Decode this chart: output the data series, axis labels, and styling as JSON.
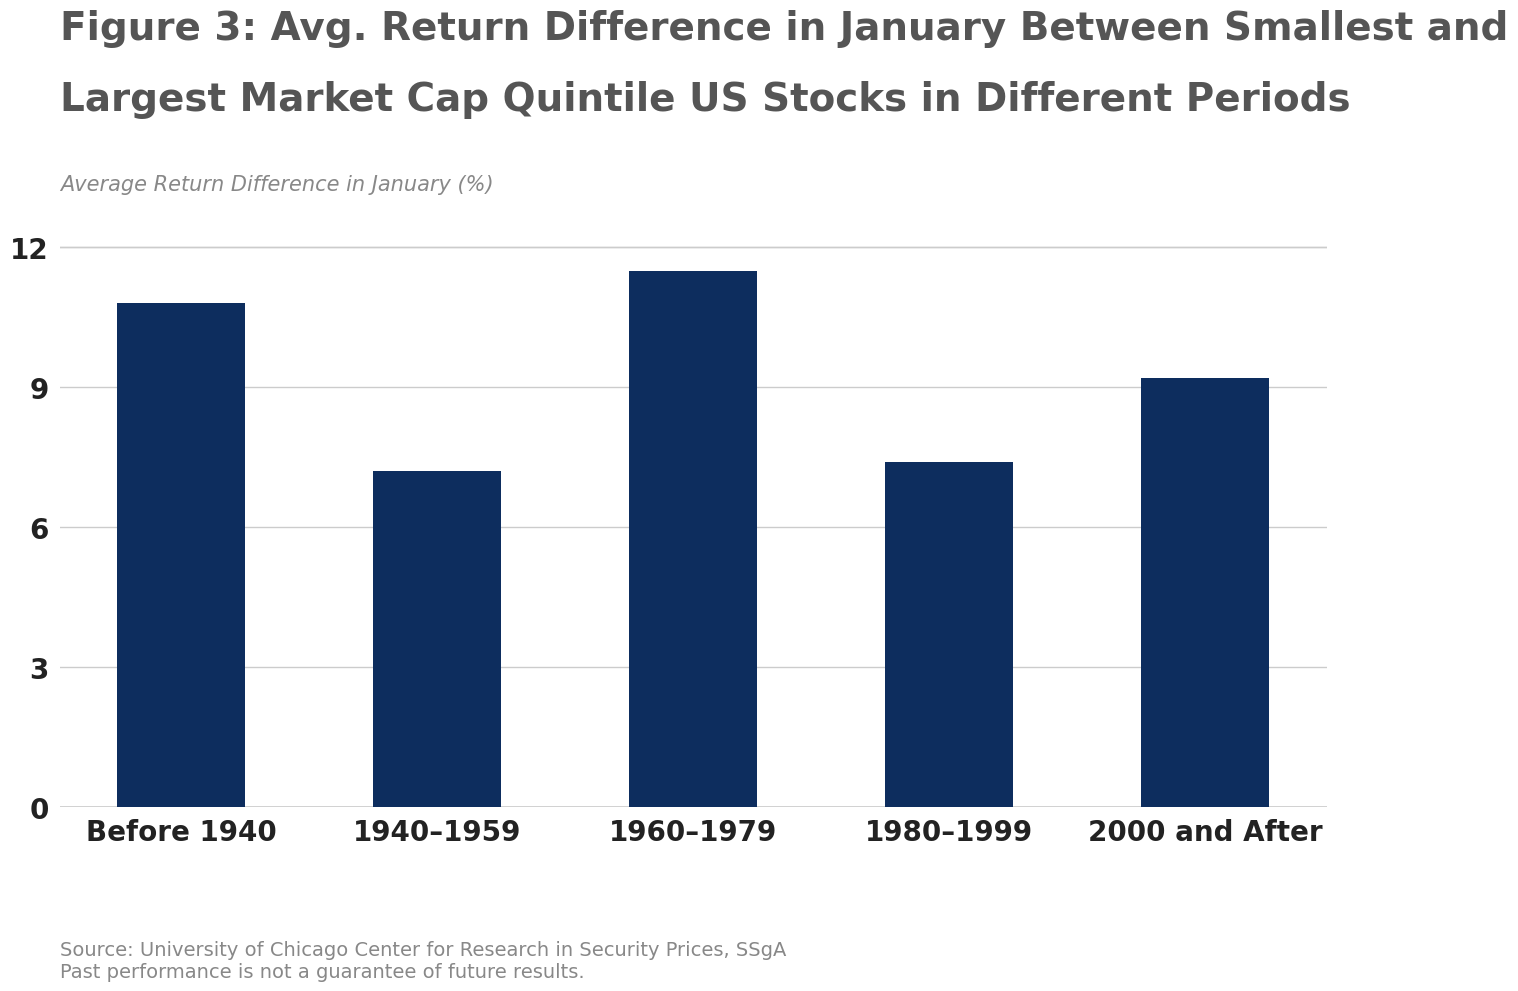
{
  "title_line1": "Figure 3: Avg. Return Difference in January Between Smallest and",
  "title_line2": "Largest Market Cap Quintile US Stocks in Different Periods",
  "ylabel": "Average Return Difference in January (%)",
  "categories": [
    "Before 1940",
    "1940–1959",
    "1960–1979",
    "1980–1999",
    "2000 and After"
  ],
  "values": [
    10.8,
    7.2,
    11.5,
    7.4,
    9.2
  ],
  "bar_color": "#0d2d5e",
  "background_color": "#ffffff",
  "yticks": [
    0,
    3,
    6,
    9,
    12
  ],
  "ylim": [
    0,
    12.8
  ],
  "source_text": "Source: University of Chicago Center for Research in Security Prices, SSgA\nPast performance is not a guarantee of future results.",
  "title_fontsize": 28,
  "ylabel_fontsize": 15,
  "tick_fontsize": 20,
  "xtick_fontsize": 20,
  "source_fontsize": 14,
  "title_color": "#555555",
  "ylabel_color": "#888888",
  "tick_color": "#222222",
  "xtick_color": "#222222",
  "source_color": "#888888",
  "grid_color": "#cccccc"
}
